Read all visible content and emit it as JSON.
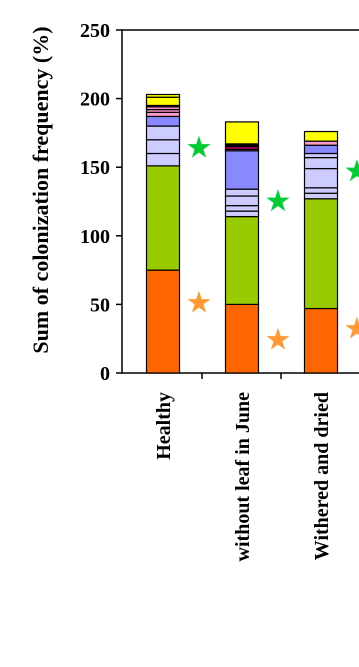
{
  "chart_data": {
    "type": "bar",
    "stacked": true,
    "ylabel": "Sum of  colonization frequency (%)",
    "ylim": [
      0,
      250
    ],
    "yticks": [
      0,
      50,
      100,
      150,
      200,
      250
    ],
    "categories": [
      "Healthy",
      "without leaf in June",
      "Withered and dried"
    ],
    "segments": [
      {
        "color": "#ff6600",
        "values": [
          75,
          50,
          47
        ]
      },
      {
        "color": "#99cc00",
        "values": [
          76,
          64,
          80
        ]
      },
      {
        "color": "#ccccff",
        "values": [
          9,
          4,
          4
        ]
      },
      {
        "color": "#ccccff",
        "values": [
          10,
          4,
          4
        ]
      },
      {
        "color": "#ccccff",
        "values": [
          10,
          7,
          14
        ]
      },
      {
        "color": "#ccccff",
        "values": [
          0,
          5,
          8
        ]
      },
      {
        "color": "#ccccff",
        "values": [
          0,
          0,
          3
        ]
      },
      {
        "color": "#8888ff",
        "values": [
          7,
          28,
          6
        ]
      },
      {
        "color": "#ff99cc",
        "values": [
          3,
          1,
          3
        ]
      },
      {
        "color": "#ff99cc",
        "values": [
          2,
          0,
          0
        ]
      },
      {
        "color": "#ff99cc",
        "values": [
          2,
          0,
          0
        ]
      },
      {
        "color": "#cc0066",
        "values": [
          1,
          2,
          0
        ]
      },
      {
        "color": "#000000",
        "values": [
          0,
          2,
          0
        ]
      },
      {
        "color": "#ffff00",
        "values": [
          6,
          16,
          7
        ]
      },
      {
        "color": "#ffff00",
        "values": [
          2,
          0,
          0
        ]
      }
    ],
    "annotations": [
      {
        "symbol": "★",
        "color": "#00cc33",
        "category": "Healthy",
        "y": 165
      },
      {
        "symbol": "★",
        "color": "#ff9933",
        "category": "Healthy",
        "y": 52
      },
      {
        "symbol": "★",
        "color": "#00cc33",
        "category": "without leaf in June",
        "y": 126
      },
      {
        "symbol": "★",
        "color": "#ff9933",
        "category": "without leaf in June",
        "y": 25
      },
      {
        "symbol": "★",
        "color": "#00cc33",
        "category": "Withered and dried",
        "y": 148
      },
      {
        "symbol": "★",
        "color": "#ff9933",
        "category": "Withered and dried",
        "y": 33
      }
    ]
  }
}
